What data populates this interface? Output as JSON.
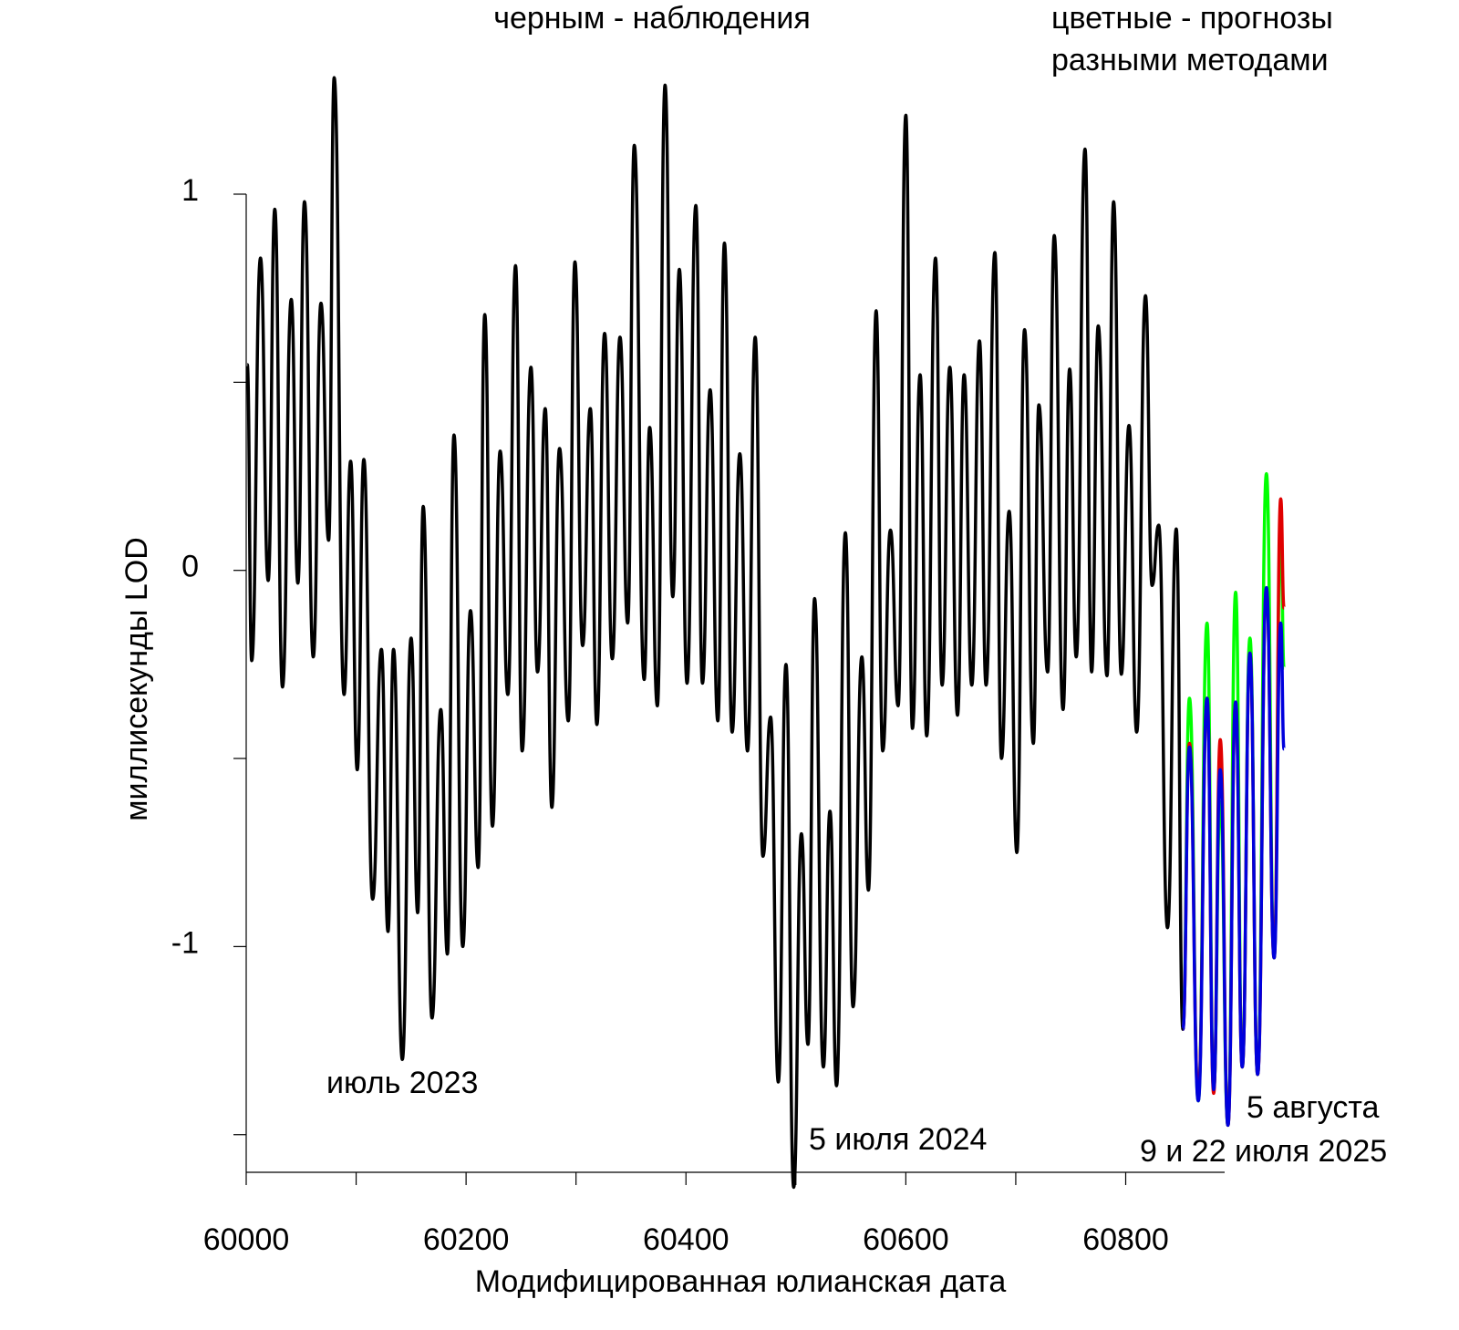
{
  "chart_data": {
    "type": "line",
    "annotations": [
      "черным - наблюдения",
      "цветные - прогнозы",
      "разными методами",
      "июль 2023",
      "5 июля 2024",
      "5 августа",
      "9 и 22 июля 2025"
    ],
    "xlabel": "Модифицированная юлианская дата",
    "ylabel": "миллисекунды LOD",
    "xlim": [
      60000,
      60890
    ],
    "ylim": [
      -1.6,
      1
    ],
    "xticks": [
      60000,
      60200,
      60400,
      60600,
      60800
    ],
    "xminor": [
      60100,
      60300,
      60500,
      60700
    ],
    "yticks": [
      -1,
      0,
      1
    ],
    "yminor": [
      -1.5,
      -0.5,
      0.5
    ],
    "series": [
      {
        "color": "#000000",
        "x": [
          60001,
          60005,
          60013,
          60020,
          60026,
          60033,
          60041,
          60047,
          60053,
          60061,
          60068,
          60075,
          60080,
          60089,
          60095,
          60101,
          60107,
          60115,
          60123,
          60129,
          60134,
          60142,
          60150,
          60156,
          60161,
          60169,
          60177,
          60183,
          60189,
          60197,
          60204,
          60211,
          60217,
          60224,
          60231,
          60238,
          60245,
          60251,
          60259,
          60265,
          60272,
          60278,
          60285,
          60293,
          60299,
          60306,
          60313,
          60319,
          60326,
          60333,
          60340,
          60347,
          60353,
          60362,
          60367,
          60374,
          60381,
          60388,
          60394,
          60401,
          60409,
          60415,
          60422,
          60429,
          60435,
          60442,
          60449,
          60456,
          60463,
          60470,
          60477,
          60484,
          60491,
          60498,
          60505,
          60511,
          60517,
          60525,
          60531,
          60537,
          60545,
          60552,
          60560,
          60566,
          60573,
          60579,
          60586,
          60593,
          60600,
          60606,
          60613,
          60619,
          60627,
          60633,
          60640,
          60647,
          60653,
          60660,
          60667,
          60673,
          60681,
          60687,
          60694,
          60701,
          60708,
          60716,
          60721,
          60729,
          60735,
          60743,
          60749,
          60755,
          60763,
          60769,
          60775,
          60783,
          60789,
          60796,
          60803,
          60810,
          60818,
          60824,
          60830,
          60838,
          60846,
          60852
        ],
        "values": [
          0.547,
          -0.24,
          0.83,
          -0.027,
          0.96,
          -0.31,
          0.72,
          -0.034,
          0.98,
          -0.23,
          0.71,
          0.08,
          1.31,
          -0.33,
          0.29,
          -0.53,
          0.295,
          -0.874,
          -0.21,
          -0.96,
          -0.21,
          -1.3,
          -0.18,
          -0.91,
          0.17,
          -1.19,
          -0.37,
          -1.02,
          0.36,
          -1.0,
          -0.107,
          -0.79,
          0.68,
          -0.68,
          0.317,
          -0.33,
          0.81,
          -0.48,
          0.54,
          -0.27,
          0.43,
          -0.63,
          0.324,
          -0.4,
          0.82,
          -0.2,
          0.43,
          -0.41,
          0.63,
          -0.235,
          0.62,
          -0.14,
          1.13,
          -0.29,
          0.38,
          -0.36,
          1.29,
          -0.07,
          0.8,
          -0.3,
          0.97,
          -0.3,
          0.48,
          -0.4,
          0.87,
          -0.43,
          0.31,
          -0.48,
          0.62,
          -0.76,
          -0.39,
          -1.36,
          -0.25,
          -1.64,
          -0.7,
          -1.26,
          -0.075,
          -1.32,
          -0.64,
          -1.37,
          0.1,
          -1.16,
          -0.23,
          -0.85,
          0.69,
          -0.48,
          0.107,
          -0.36,
          1.21,
          -0.42,
          0.52,
          -0.44,
          0.83,
          -0.305,
          0.54,
          -0.385,
          0.52,
          -0.305,
          0.61,
          -0.305,
          0.845,
          -0.5,
          0.157,
          -0.75,
          0.64,
          -0.46,
          0.44,
          -0.27,
          0.89,
          -0.37,
          0.535,
          -0.23,
          1.12,
          -0.27,
          0.65,
          -0.28,
          0.98,
          -0.276,
          0.385,
          -0.43,
          0.73,
          -0.04,
          0.12,
          -0.95,
          0.11,
          -1.22
        ]
      },
      {
        "color": "#00ff00",
        "x": [
          60852,
          60858,
          60866,
          60874,
          60880,
          60886,
          60893,
          60900,
          60906,
          60913,
          60920,
          60928,
          60935,
          60941,
          60944
        ],
        "values": [
          -1.22,
          -0.34,
          -1.41,
          -0.14,
          -1.38,
          -0.615,
          -1.475,
          -0.058,
          -1.32,
          -0.18,
          -1.34,
          0.257,
          -1.03,
          0.116,
          -0.26
        ]
      },
      {
        "color": "#e00000",
        "x": [
          60852,
          60858,
          60866,
          60874,
          60880,
          60886,
          60893,
          60900,
          60906,
          60913,
          60920,
          60928,
          60935,
          60941,
          60944
        ],
        "values": [
          -1.22,
          -0.46,
          -1.39,
          -0.34,
          -1.39,
          -0.45,
          -1.475,
          -0.35,
          -1.32,
          -0.22,
          -1.34,
          -0.05,
          -1.03,
          0.19,
          -0.1
        ]
      },
      {
        "color": "#0000dd",
        "x": [
          60852,
          60858,
          60866,
          60874,
          60880,
          60886,
          60893,
          60900,
          60906,
          60913,
          60920,
          60928,
          60935,
          60941,
          60944
        ],
        "values": [
          -1.22,
          -0.47,
          -1.41,
          -0.34,
          -1.38,
          -0.53,
          -1.475,
          -0.35,
          -1.32,
          -0.22,
          -1.34,
          -0.046,
          -1.03,
          -0.14,
          -0.475
        ]
      }
    ]
  }
}
